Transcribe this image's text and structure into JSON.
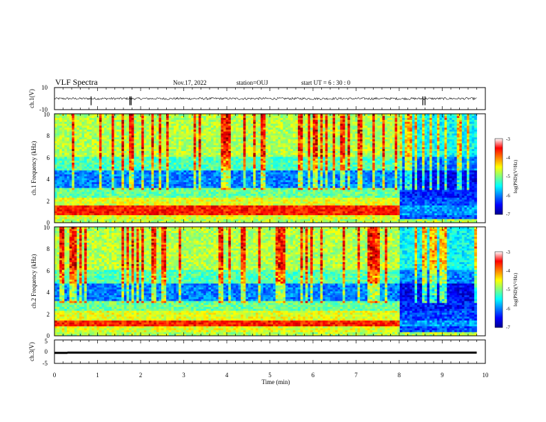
{
  "header": {
    "title": "VLF Spectra",
    "date": "Nov.17, 2022",
    "station": "station=OUJ",
    "start_ut": "start UT = 6 : 30 : 0"
  },
  "chart_data": [
    {
      "type": "line",
      "panel": "ch1-waveform",
      "ylabel": "ch.1(V)",
      "ylim": [
        -10,
        10
      ],
      "y_tick_labels": [
        "10",
        "-10"
      ],
      "xlim": [
        0,
        10
      ],
      "series": [
        {
          "baseline": 0,
          "noise_amplitude": 1,
          "spike_times_min": [
            0.85,
            1.75,
            1.78,
            8.55,
            8.6
          ]
        }
      ]
    },
    {
      "type": "heatmap",
      "panel": "ch1-spectrogram",
      "ylabel": "ch.1 Frequency (kHz)",
      "ylim": [
        0,
        10
      ],
      "y_tick_labels": [
        "0",
        "2",
        "4",
        "6",
        "8",
        "10"
      ],
      "xlim": [
        0,
        10
      ],
      "data_end_min": 9.8,
      "colorscale": "jet",
      "colorbar": {
        "label": "log(PSD)(V²/Hz)",
        "range": [
          -7,
          -3
        ],
        "ticks": [
          "-3",
          "-4",
          "-5",
          "-6",
          "-7"
        ]
      },
      "features": {
        "strong_band_khz": [
          0.8,
          1.6
        ],
        "weak_region_after_min": 8.0,
        "vertical_spike_texture": true
      }
    },
    {
      "type": "heatmap",
      "panel": "ch2-spectrogram",
      "ylabel": "ch.2 Frequency (kHz)",
      "ylim": [
        0,
        10
      ],
      "y_tick_labels": [
        "0",
        "2",
        "4",
        "6",
        "8",
        "10"
      ],
      "xlim": [
        0,
        10
      ],
      "data_end_min": 9.8,
      "colorscale": "jet",
      "colorbar": {
        "label": "log(PSD)(V²/Hz)",
        "range": [
          -7,
          -3
        ],
        "ticks": [
          "-3",
          "-4",
          "-5",
          "-6",
          "-7"
        ]
      },
      "features": {
        "strong_band_khz": [
          0.9,
          1.5
        ],
        "weak_region_after_min": 8.0,
        "vertical_spike_texture": true
      }
    },
    {
      "type": "line",
      "panel": "ch3-waveform",
      "ylabel": "ch.3(V)",
      "ylim": [
        -5,
        5
      ],
      "y_tick_labels": [
        "5",
        "0",
        "-5"
      ],
      "xlim": [
        0,
        10
      ],
      "series": [
        {
          "levels": [
            {
              "x": [
                0.0,
                0.3
              ],
              "y": -0.5
            },
            {
              "x": [
                0.3,
                9.8
              ],
              "y": -0.4
            }
          ]
        }
      ]
    }
  ],
  "xaxis": {
    "label": "Time (min)",
    "ticks": [
      "0",
      "1",
      "2",
      "3",
      "4",
      "5",
      "6",
      "7",
      "8",
      "9",
      "10"
    ]
  }
}
